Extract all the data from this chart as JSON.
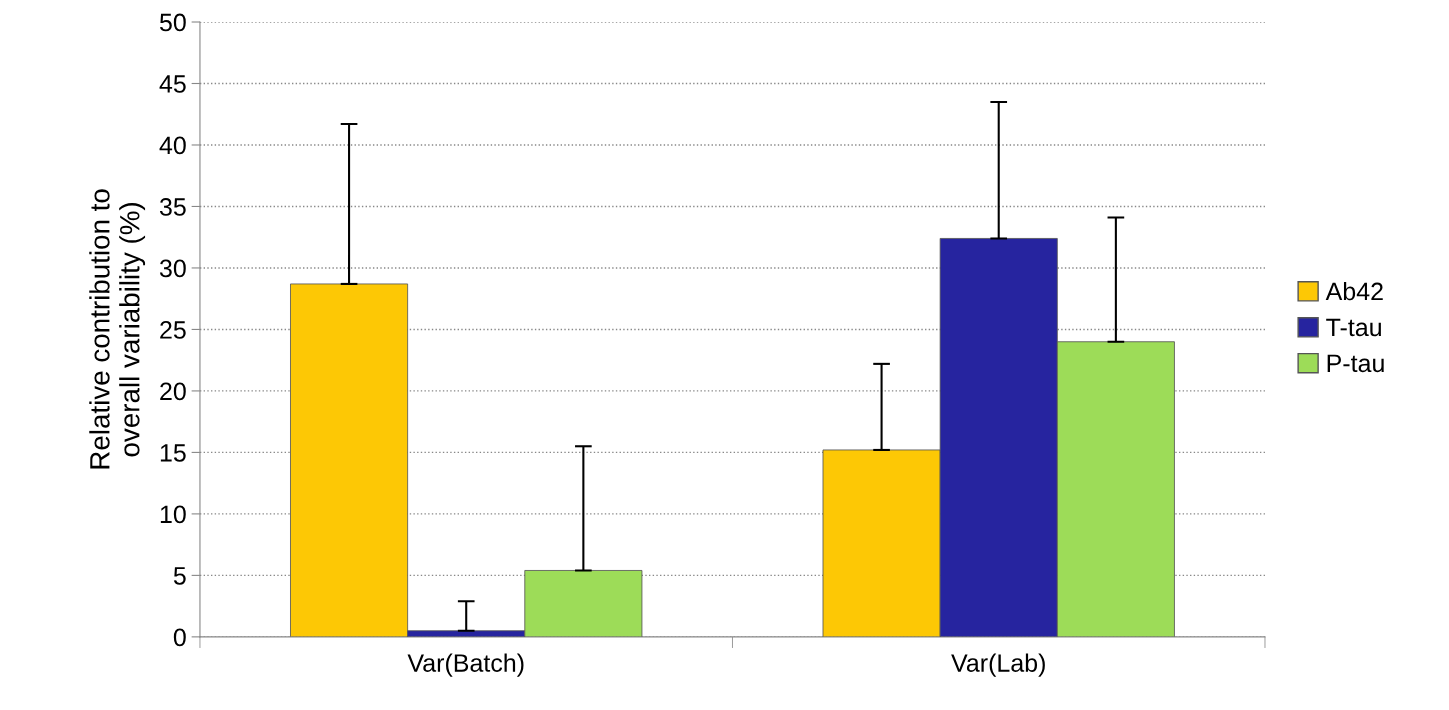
{
  "chart_data": {
    "type": "bar",
    "ylabel": "Relative contribution to\noverall variability (%)",
    "categories": [
      "Var(Batch)",
      "Var(Lab)"
    ],
    "series": [
      {
        "name": "Ab42",
        "color": "#fdc805",
        "values": [
          28.7,
          15.2
        ],
        "errors": [
          [
            28.7,
            41.7
          ],
          [
            15.2,
            22.2
          ]
        ]
      },
      {
        "name": "T-tau",
        "color": "#26249f",
        "values": [
          0.5,
          32.4
        ],
        "errors": [
          [
            0.5,
            2.9
          ],
          [
            32.4,
            43.5
          ]
        ]
      },
      {
        "name": "P-tau",
        "color": "#9ddc58",
        "values": [
          5.4,
          24.0
        ],
        "errors": [
          [
            5.4,
            15.5
          ],
          [
            24.0,
            34.1
          ]
        ]
      }
    ],
    "ylim": [
      0,
      50
    ],
    "yticks": [
      0,
      5,
      10,
      15,
      20,
      25,
      30,
      35,
      40,
      45,
      50
    ],
    "grid": "y",
    "legend": "right"
  }
}
